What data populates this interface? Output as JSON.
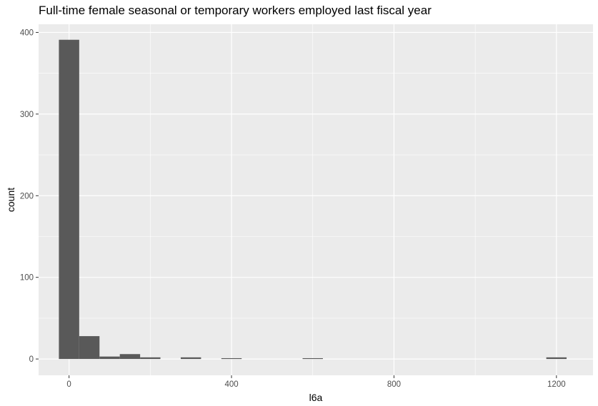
{
  "chart_data": {
    "type": "histogram",
    "title": "Full-time female seasonal or temporary workers employed last fiscal year",
    "xlabel": "l6a",
    "ylabel": "count",
    "xlim": [
      -75,
      1290
    ],
    "ylim": [
      -20,
      410
    ],
    "x_ticks": [
      0,
      400,
      800,
      1200
    ],
    "y_ticks": [
      0,
      100,
      200,
      300,
      400
    ],
    "bin_width": 50,
    "bins": [
      {
        "x0": -25,
        "x1": 25,
        "count": 391
      },
      {
        "x0": 25,
        "x1": 75,
        "count": 28
      },
      {
        "x0": 75,
        "x1": 125,
        "count": 3
      },
      {
        "x0": 125,
        "x1": 175,
        "count": 6
      },
      {
        "x0": 175,
        "x1": 225,
        "count": 2
      },
      {
        "x0": 225,
        "x1": 275,
        "count": 0
      },
      {
        "x0": 275,
        "x1": 325,
        "count": 2
      },
      {
        "x0": 325,
        "x1": 375,
        "count": 0
      },
      {
        "x0": 375,
        "x1": 425,
        "count": 1
      },
      {
        "x0": 425,
        "x1": 475,
        "count": 0
      },
      {
        "x0": 475,
        "x1": 525,
        "count": 0
      },
      {
        "x0": 525,
        "x1": 575,
        "count": 0
      },
      {
        "x0": 575,
        "x1": 625,
        "count": 1
      },
      {
        "x0": 625,
        "x1": 675,
        "count": 0
      },
      {
        "x0": 675,
        "x1": 725,
        "count": 0
      },
      {
        "x0": 725,
        "x1": 775,
        "count": 0
      },
      {
        "x0": 775,
        "x1": 825,
        "count": 0
      },
      {
        "x0": 825,
        "x1": 875,
        "count": 0
      },
      {
        "x0": 875,
        "x1": 925,
        "count": 0
      },
      {
        "x0": 925,
        "x1": 975,
        "count": 0
      },
      {
        "x0": 975,
        "x1": 1025,
        "count": 0
      },
      {
        "x0": 1025,
        "x1": 1075,
        "count": 0
      },
      {
        "x0": 1075,
        "x1": 1125,
        "count": 0
      },
      {
        "x0": 1125,
        "x1": 1175,
        "count": 0
      },
      {
        "x0": 1175,
        "x1": 1225,
        "count": 2
      }
    ],
    "colors": {
      "panel_background": "#EBEBEB",
      "grid": "#FFFFFF",
      "bar_fill": "#595959"
    },
    "grid": true,
    "legend": "none"
  }
}
